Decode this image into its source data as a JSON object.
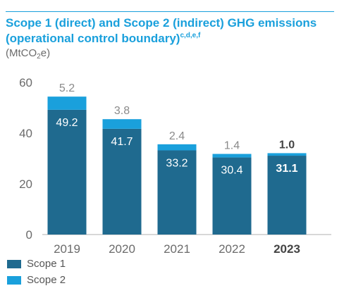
{
  "title": "Scope 1 (direct) and Scope 2 (indirect) GHG emissions (operational control boundary)",
  "title_sup": "c,d,e,f",
  "unit_before": "(MtCO",
  "unit_sub": "2",
  "unit_after": "e)",
  "colors": {
    "accent": "#1aa0dc",
    "scope1": "#1f6a8f",
    "scope2": "#1aa0dc",
    "axis_text": "#6b6b6b",
    "grid": "#b0b0b0"
  },
  "chart_data": {
    "type": "bar",
    "stacked": true,
    "categories": [
      "2019",
      "2020",
      "2021",
      "2022",
      "2023"
    ],
    "highlight_category": "2023",
    "series": [
      {
        "name": "Scope 1",
        "values": [
          49.2,
          41.7,
          33.2,
          30.4,
          31.1
        ]
      },
      {
        "name": "Scope 2",
        "values": [
          5.2,
          3.8,
          2.4,
          1.4,
          1.0
        ]
      }
    ],
    "y_ticks": [
      0,
      20,
      40,
      60
    ],
    "ylim": [
      0,
      60
    ],
    "grid": false,
    "legend_position": "bottom-left"
  }
}
